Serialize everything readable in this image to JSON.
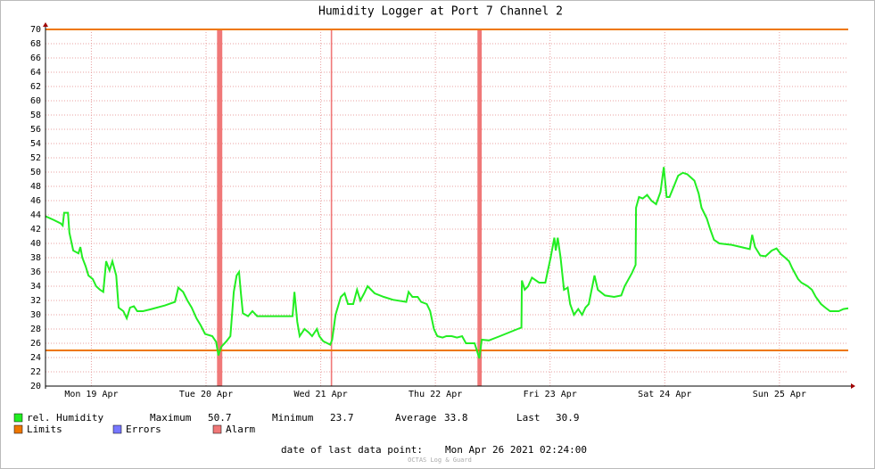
{
  "chart_data": {
    "type": "line",
    "title": "Humidity Logger at Port 7 Channel 2",
    "x": [
      2.4,
      4.1,
      5.6,
      6.0,
      6.3,
      7.1,
      7.4,
      8.2,
      9.3,
      9.7,
      10.1,
      10.8,
      11.4,
      12.3,
      13.0,
      13.8,
      14.5,
      15.1,
      15.8,
      16.4,
      17.2,
      17.7,
      18.7,
      19.4,
      20.1,
      20.9,
      21.6,
      22.8,
      24.6,
      27.4,
      29.5,
      30.2,
      31.2,
      32.1,
      33.0,
      34.0,
      34.9,
      35.8,
      37.3,
      38.1,
      38.6,
      39.2,
      40.3,
      41.1,
      41.8,
      42.4,
      42.9,
      43.3,
      43.7,
      44.8,
      45.7,
      46.7,
      48.9,
      54.1,
      54.5,
      55.1,
      55.6,
      56.6,
      57.5,
      58.2,
      59.2,
      59.7,
      60.5,
      62.0,
      62.4,
      63.1,
      64.2,
      65.0,
      65.7,
      66.8,
      67.6,
      68.3,
      69.1,
      69.8,
      71.3,
      73.2,
      75.1,
      77.9,
      78.4,
      79.2,
      80.3,
      81.0,
      82.2,
      82.9,
      83.7,
      84.4,
      85.5,
      86.3,
      87.4,
      88.5,
      89.6,
      90.4,
      92.2,
      93.2,
      93.7,
      95.2,
      97.5,
      101.2,
      102.0,
      102.1,
      102.7,
      103.4,
      104.2,
      105.7,
      107.0,
      108.1,
      108.9,
      109.2,
      109.6,
      110.2,
      110.9,
      111.7,
      112.2,
      113.0,
      113.9,
      114.7,
      115.4,
      116.1,
      117.3,
      118.0,
      119.5,
      121.4,
      122.9,
      123.6,
      125.1,
      125.9,
      126.0,
      126.6,
      127.4,
      128.3,
      129.2,
      130.2,
      131.1,
      131.8,
      132.4,
      133.0,
      133.9,
      134.8,
      135.8,
      136.7,
      138.2,
      139.1,
      139.7,
      140.8,
      141.5,
      142.3,
      143.4,
      146.0,
      147.9,
      149.8,
      150.3,
      150.9,
      152.0,
      153.1,
      154.4,
      155.4,
      156.3,
      157.2,
      158.0,
      158.7,
      159.9,
      160.6,
      161.9,
      162.8,
      163.6,
      164.7,
      165.6,
      166.6,
      168.4,
      169.4,
      170.4
    ],
    "series": [
      {
        "name": "rel. Humidity",
        "color": "#22ee22",
        "values": [
          43.8,
          43.3,
          42.8,
          42.5,
          44.3,
          44.3,
          41.5,
          39,
          38.6,
          39.5,
          38,
          36.8,
          35.5,
          35,
          34,
          33.5,
          33.2,
          37.5,
          36.2,
          37.5,
          35.5,
          31,
          30.5,
          29.5,
          31,
          31.2,
          30.5,
          30.5,
          30.8,
          31.3,
          31.8,
          33.8,
          33.2,
          32,
          31,
          29.5,
          28.5,
          27.3,
          27,
          26.2,
          24.3,
          25.5,
          26.3,
          27,
          33.2,
          35.5,
          36,
          33,
          30.2,
          29.8,
          30.5,
          29.8,
          29.8,
          29.8,
          33.2,
          29,
          27,
          28,
          27.5,
          27,
          28,
          27,
          26.3,
          25.8,
          26.5,
          30,
          32.5,
          33,
          31.5,
          31.5,
          33.5,
          32,
          33,
          34,
          33,
          32.5,
          32.1,
          31.8,
          33.2,
          32.5,
          32.5,
          31.8,
          31.5,
          30.5,
          28,
          27,
          26.8,
          27,
          27,
          26.8,
          27,
          26,
          26,
          23.9,
          26.5,
          26.4,
          27,
          28,
          28.2,
          34.8,
          33.5,
          34,
          35.2,
          34.5,
          34.5,
          38,
          40.8,
          39,
          40.8,
          38,
          33.5,
          33.8,
          31.5,
          30,
          30.8,
          30,
          31,
          31.5,
          35.5,
          33.5,
          32.7,
          32.5,
          32.7,
          34,
          35.8,
          37,
          45,
          46.5,
          46.3,
          46.8,
          46,
          45.5,
          47.2,
          50.7,
          46.5,
          46.5,
          48,
          49.5,
          49.9,
          49.7,
          48.8,
          47,
          45,
          43.5,
          42,
          40.5,
          40,
          39.8,
          39.5,
          39.2,
          41.2,
          39.5,
          38.3,
          38.2,
          39,
          39.3,
          38.5,
          38,
          37.5,
          36.5,
          35,
          34.5,
          34,
          33.5,
          32.5,
          31.5,
          31,
          30.5,
          30.5,
          30.8,
          30.9
        ]
      }
    ],
    "limits": {
      "name": "Limits",
      "color": "#ee7700",
      "values": [
        25,
        70
      ]
    },
    "errors": {
      "name": "Errors",
      "color": "#7777ff"
    },
    "alarms": {
      "name": "Alarm",
      "color": "#f07878",
      "periods": [
        [
          38.3,
          39.4
        ],
        [
          62.1,
          62.4
        ],
        [
          92.8,
          93.7
        ]
      ]
    },
    "xlim": [
      2.4,
      170.4
    ],
    "xticks": [
      {
        "value": 12,
        "label": "Mon 19 Apr"
      },
      {
        "value": 36,
        "label": "Tue 20 Apr"
      },
      {
        "value": 60,
        "label": "Wed 21 Apr"
      },
      {
        "value": 84,
        "label": "Thu 22 Apr"
      },
      {
        "value": 108,
        "label": "Fri 23 Apr"
      },
      {
        "value": 132,
        "label": "Sat 24 Apr"
      },
      {
        "value": 156,
        "label": "Sun 25 Apr"
      }
    ],
    "ylim": [
      20,
      70
    ],
    "yticks": [
      20,
      22,
      24,
      26,
      28,
      30,
      32,
      34,
      36,
      38,
      40,
      42,
      44,
      46,
      48,
      50,
      52,
      54,
      56,
      58,
      60,
      62,
      64,
      66,
      68,
      70
    ],
    "grid": true,
    "stats": [
      {
        "label": "Maximum",
        "value": 50.7
      },
      {
        "label": "Minimum",
        "value": 23.7
      },
      {
        "label": "Average",
        "value": 33.8
      },
      {
        "label": "Last",
        "value": 30.9
      }
    ],
    "footer": {
      "label": "date of last data point:",
      "value": "Mon Apr 26 2021 02:24:00"
    },
    "watermark": "OCTAS Log & Guard"
  }
}
